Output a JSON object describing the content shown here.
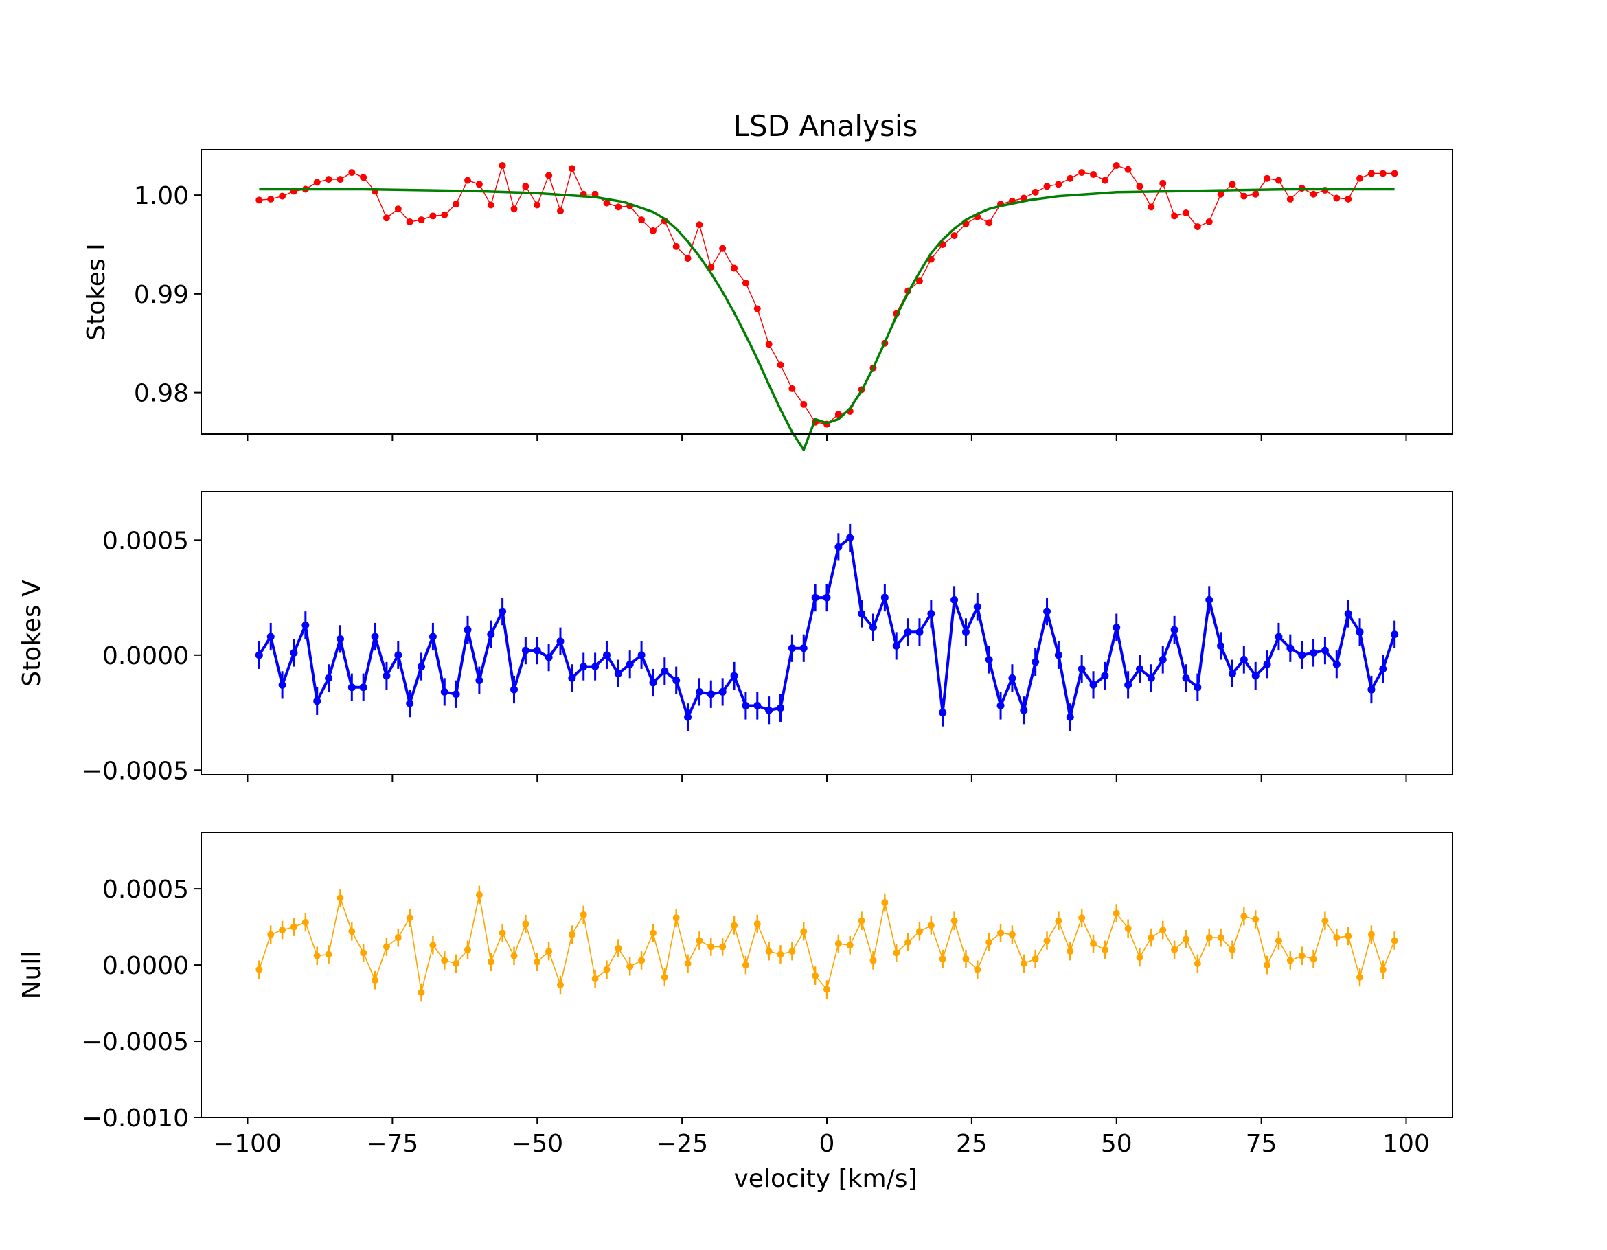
{
  "title": "LSD Analysis",
  "xlabel": "velocity [km/s]",
  "colors": {
    "stokes_i": "#ff0000",
    "fit": "#007f00",
    "stokes_v": "#0000ff",
    "null": "#ffa500"
  },
  "chart_data": [
    {
      "type": "line",
      "panel": "stokes-i",
      "title": "LSD Analysis",
      "ylabel": "Stokes I",
      "xlim": [
        -108,
        108
      ],
      "ylim": [
        0.9758,
        1.0046
      ],
      "xticks": [
        -100,
        -75,
        -50,
        -25,
        0,
        25,
        50,
        75,
        100
      ],
      "xtick_labels": [
        "",
        "",
        "",
        "",
        "",
        "",
        "",
        "",
        ""
      ],
      "yticks": [
        0.98,
        0.99,
        1.0
      ],
      "ytick_labels": [
        "0.98",
        "0.99",
        "1.00"
      ],
      "grid": false,
      "series": [
        {
          "marker": "circle",
          "errorbars": false,
          "style": "thin-line-with-dots",
          "x": [
            -98,
            -96,
            -94,
            -92,
            -90,
            -88,
            -86,
            -84,
            -82,
            -80,
            -78,
            -76,
            -74,
            -72,
            -70,
            -68,
            -66,
            -64,
            -62,
            -60,
            -58,
            -56,
            -54,
            -52,
            -50,
            -48,
            -46,
            -44,
            -42,
            -40,
            -38,
            -36,
            -34,
            -32,
            -30,
            -28,
            -26,
            -24,
            -22,
            -20,
            -18,
            -16,
            -14,
            -12,
            -10,
            -8,
            -6,
            -4,
            -2,
            0,
            2,
            4,
            6,
            8,
            10,
            12,
            14,
            16,
            18,
            20,
            22,
            24,
            26,
            28,
            30,
            32,
            34,
            36,
            38,
            40,
            42,
            44,
            46,
            48,
            50,
            52,
            54,
            56,
            58,
            60,
            62,
            64,
            66,
            68,
            70,
            72,
            74,
            76,
            78,
            80,
            82,
            84,
            86,
            88,
            90,
            92,
            94,
            96,
            98
          ],
          "y": [
            0.9995,
            0.9996,
            0.9999,
            1.0004,
            1.0006,
            1.0013,
            1.0016,
            1.0016,
            1.0023,
            1.0018,
            1.0004,
            0.9977,
            0.9986,
            0.9973,
            0.9975,
            0.9979,
            0.998,
            0.9991,
            1.0015,
            1.0011,
            0.999,
            1.003,
            0.9986,
            1.0009,
            0.999,
            1.002,
            0.9984,
            1.0027,
            1.0001,
            1.0001,
            0.9992,
            0.9988,
            0.9989,
            0.9975,
            0.9964,
            0.9974,
            0.9948,
            0.9936,
            0.997,
            0.9927,
            0.9946,
            0.9926,
            0.9911,
            0.9885,
            0.9849,
            0.9828,
            0.9804,
            0.9788,
            0.977,
            0.9768,
            0.9778,
            0.9781,
            0.9803,
            0.9825,
            0.985,
            0.988,
            0.9903,
            0.9913,
            0.9935,
            0.995,
            0.9959,
            0.9971,
            0.9978,
            0.9972,
            0.9991,
            0.9994,
            0.9997,
            1.0003,
            1.0009,
            1.0011,
            1.0017,
            1.0023,
            1.0021,
            1.0015,
            1.003,
            1.0026,
            1.0009,
            0.9988,
            1.0012,
            0.9979,
            0.9982,
            0.9968,
            0.9973,
            1.0001,
            1.0011,
            0.9999,
            1.0001,
            1.0017,
            1.0015,
            0.9996,
            1.0007,
            1.0001,
            1.0005,
            0.9997,
            0.9996,
            1.0017,
            1.0022,
            1.0022,
            1.0022
          ]
        },
        {
          "name": "",
          "marker": "none",
          "style": "smooth-fit",
          "x": [
            -98,
            -90,
            -80,
            -70,
            -60,
            -50,
            -45,
            -40,
            -35,
            -30,
            -28,
            -26,
            -24,
            -22,
            -20,
            -18,
            -16,
            -14,
            -12,
            -10,
            -8,
            -6,
            -4,
            -2,
            0,
            2,
            4,
            6,
            8,
            10,
            12,
            14,
            16,
            18,
            20,
            22,
            24,
            26,
            28,
            30,
            35,
            40,
            45,
            50,
            60,
            70,
            80,
            90,
            98
          ],
          "y": [
            1.0006,
            1.0006,
            1.0006,
            1.0005,
            1.0004,
            1.0002,
            1.0,
            0.9998,
            0.9993,
            0.9983,
            0.9976,
            0.9966,
            0.9953,
            0.9938,
            0.9921,
            0.9902,
            0.9881,
            0.9858,
            0.9834,
            0.9808,
            0.9783,
            0.976,
            0.9742,
            0.9773,
            0.9769,
            0.9773,
            0.9784,
            0.9802,
            0.9825,
            0.9851,
            0.9877,
            0.9901,
            0.9922,
            0.9941,
            0.9955,
            0.9966,
            0.9975,
            0.9981,
            0.9986,
            0.9989,
            0.9995,
            0.9999,
            1.0001,
            1.0003,
            1.0004,
            1.0005,
            1.0006,
            1.0006,
            1.0006
          ]
        }
      ]
    },
    {
      "type": "line",
      "panel": "stokes-v",
      "ylabel": "Stokes V",
      "xlim": [
        -108,
        108
      ],
      "ylim": [
        -0.00052,
        0.00071
      ],
      "xticks": [
        -100,
        -75,
        -50,
        -25,
        0,
        25,
        50,
        75,
        100
      ],
      "xtick_labels": [
        "",
        "",
        "",
        "",
        "",
        "",
        "",
        "",
        ""
      ],
      "yticks": [
        -0.0005,
        0.0,
        0.0005
      ],
      "ytick_labels": [
        "−0.0005",
        "0.0000",
        "0.0005"
      ],
      "grid": false,
      "series": [
        {
          "marker": "circle",
          "errorbars": true,
          "error": 6e-05,
          "style": "thick-line",
          "x": [
            -98,
            -96,
            -94,
            -92,
            -90,
            -88,
            -86,
            -84,
            -82,
            -80,
            -78,
            -76,
            -74,
            -72,
            -70,
            -68,
            -66,
            -64,
            -62,
            -60,
            -58,
            -56,
            -54,
            -52,
            -50,
            -48,
            -46,
            -44,
            -42,
            -40,
            -38,
            -36,
            -34,
            -32,
            -30,
            -28,
            -26,
            -24,
            -22,
            -20,
            -18,
            -16,
            -14,
            -12,
            -10,
            -8,
            -6,
            -4,
            -2,
            0,
            2,
            4,
            6,
            8,
            10,
            12,
            14,
            16,
            18,
            20,
            22,
            24,
            26,
            28,
            30,
            32,
            34,
            36,
            38,
            40,
            42,
            44,
            46,
            48,
            50,
            52,
            54,
            56,
            58,
            60,
            62,
            64,
            66,
            68,
            70,
            72,
            74,
            76,
            78,
            80,
            82,
            84,
            86,
            88,
            90,
            92,
            94,
            96,
            98
          ],
          "y": [
            0.0,
            8e-05,
            -0.00013,
            1e-05,
            0.00013,
            -0.0002,
            -0.0001,
            7e-05,
            -0.00014,
            -0.00014,
            8e-05,
            -9e-05,
            0.0,
            -0.00021,
            -5e-05,
            8e-05,
            -0.00016,
            -0.00017,
            0.00011,
            -0.00011,
            9e-05,
            0.00019,
            -0.00015,
            2e-05,
            2e-05,
            -1e-05,
            6e-05,
            -0.0001,
            -5e-05,
            -5e-05,
            0.0,
            -8e-05,
            -4e-05,
            0.0,
            -0.00012,
            -7e-05,
            -0.00011,
            -0.00027,
            -0.00016,
            -0.00017,
            -0.00016,
            -9e-05,
            -0.00022,
            -0.00022,
            -0.00024,
            -0.00023,
            3e-05,
            3e-05,
            0.00025,
            0.00025,
            0.00047,
            0.00051,
            0.00018,
            0.00012,
            0.00025,
            4e-05,
            0.0001,
            0.0001,
            0.00018,
            -0.00025,
            0.00024,
            0.0001,
            0.00021,
            -2e-05,
            -0.00022,
            -0.0001,
            -0.00024,
            -3e-05,
            0.00019,
            0.0,
            -0.00027,
            -6e-05,
            -0.00013,
            -9e-05,
            0.00012,
            -0.00013,
            -6e-05,
            -0.0001,
            -2e-05,
            0.00011,
            -0.0001,
            -0.00014,
            0.00024,
            4e-05,
            -8e-05,
            -2e-05,
            -9e-05,
            -4e-05,
            8e-05,
            3e-05,
            0.0,
            1e-05,
            2e-05,
            -4e-05,
            0.00018,
            0.0001,
            -0.00015,
            -6e-05,
            9e-05
          ]
        }
      ]
    },
    {
      "type": "line",
      "panel": "null",
      "ylabel": "Null",
      "xlabel": "velocity [km/s]",
      "xlim": [
        -108,
        108
      ],
      "ylim": [
        -0.001,
        0.00087
      ],
      "xticks": [
        -100,
        -75,
        -50,
        -25,
        0,
        25,
        50,
        75,
        100
      ],
      "xtick_labels": [
        "−100",
        "−75",
        "−50",
        "−25",
        "0",
        "25",
        "50",
        "75",
        "100"
      ],
      "yticks": [
        -0.001,
        -0.0005,
        0.0,
        0.0005
      ],
      "ytick_labels": [
        "−0.0010",
        "−0.0005",
        "0.0000",
        "0.0005"
      ],
      "grid": false,
      "series": [
        {
          "marker": "circle",
          "errorbars": true,
          "error": 6e-05,
          "style": "thin-line",
          "x": [
            -98,
            -96,
            -94,
            -92,
            -90,
            -88,
            -86,
            -84,
            -82,
            -80,
            -78,
            -76,
            -74,
            -72,
            -70,
            -68,
            -66,
            -64,
            -62,
            -60,
            -58,
            -56,
            -54,
            -52,
            -50,
            -48,
            -46,
            -44,
            -42,
            -40,
            -38,
            -36,
            -34,
            -32,
            -30,
            -28,
            -26,
            -24,
            -22,
            -20,
            -18,
            -16,
            -14,
            -12,
            -10,
            -8,
            -6,
            -4,
            -2,
            0,
            2,
            4,
            6,
            8,
            10,
            12,
            14,
            16,
            18,
            20,
            22,
            24,
            26,
            28,
            30,
            32,
            34,
            36,
            38,
            40,
            42,
            44,
            46,
            48,
            50,
            52,
            54,
            56,
            58,
            60,
            62,
            64,
            66,
            68,
            70,
            72,
            74,
            76,
            78,
            80,
            82,
            84,
            86,
            88,
            90,
            92,
            94,
            96,
            98
          ],
          "y": [
            -3e-05,
            0.0002,
            0.00023,
            0.00025,
            0.00028,
            6e-05,
            7e-05,
            0.00044,
            0.00022,
            8e-05,
            -0.0001,
            0.00012,
            0.00018,
            0.00031,
            -0.00018,
            0.00013,
            3e-05,
            1e-05,
            0.0001,
            0.00046,
            2e-05,
            0.00021,
            6e-05,
            0.00027,
            2e-05,
            9e-05,
            -0.00013,
            0.0002,
            0.00033,
            -9e-05,
            -3e-05,
            0.00011,
            -1e-05,
            3e-05,
            0.00021,
            -8e-05,
            0.00031,
            1e-05,
            0.00016,
            0.00012,
            0.00012,
            0.00026,
            0.0,
            0.00027,
            9e-05,
            7e-05,
            9e-05,
            0.00022,
            -7e-05,
            -0.00016,
            0.00014,
            0.00013,
            0.00029,
            3e-05,
            0.00041,
            8e-05,
            0.00015,
            0.00022,
            0.00026,
            4e-05,
            0.00029,
            4e-05,
            -3e-05,
            0.00015,
            0.00021,
            0.0002,
            1e-05,
            4e-05,
            0.00016,
            0.00029,
            9e-05,
            0.00031,
            0.00014,
            0.0001,
            0.00034,
            0.00024,
            5e-05,
            0.00018,
            0.00023,
            0.0001,
            0.00017,
            1e-05,
            0.00018,
            0.00018,
            0.0001,
            0.00032,
            0.0003,
            0.0,
            0.00016,
            3e-05,
            6e-05,
            4e-05,
            0.00029,
            0.00018,
            0.00019,
            -8e-05,
            0.0002,
            -3e-05,
            0.00016
          ]
        }
      ]
    }
  ]
}
